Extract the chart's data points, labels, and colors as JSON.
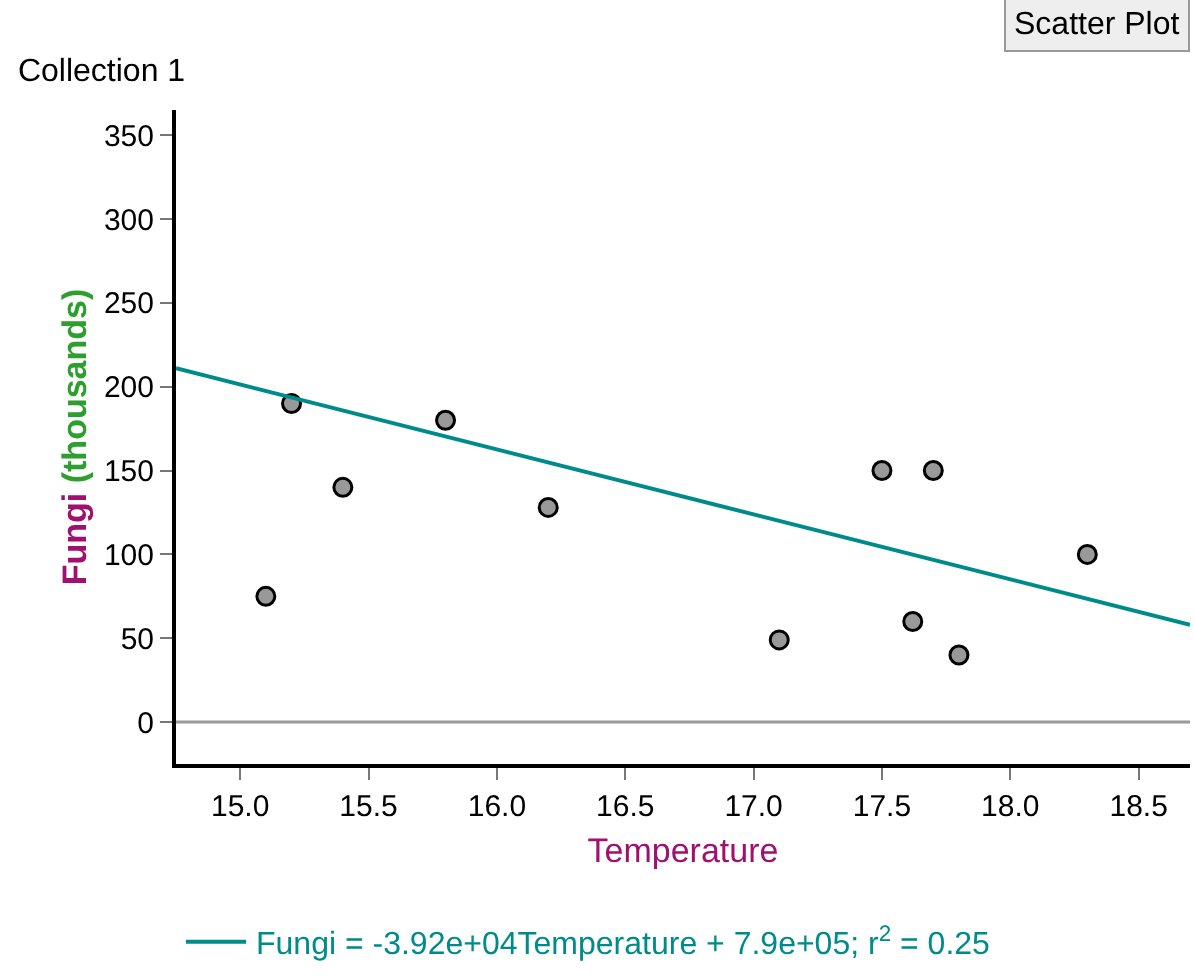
{
  "chart_data": {
    "type": "scatter",
    "title": "Collection 1",
    "xlabel": "Temperature",
    "ylabel": "Fungi (thousands)",
    "annotations": [
      "Scatter Plot"
    ],
    "series": [
      {
        "color": "#999999",
        "marker": "circle",
        "x": [
          15.1,
          15.2,
          15.4,
          15.8,
          16.2,
          17.1,
          17.5,
          17.62,
          17.7,
          17.8,
          18.3
        ],
        "values": [
          75,
          190,
          140,
          180,
          128,
          49,
          150,
          60,
          150,
          40,
          100
        ]
      },
      {
        "type": "line",
        "name": "Fungi = -3.92e+04Temperature + 7.9e+05; r$^{2}$ = 0.25",
        "color": "#008b8b",
        "x": [
          14.75,
          18.7
        ],
        "values": [
          211,
          58
        ]
      }
    ],
    "xlim": [
      14.75,
      18.7
    ],
    "xticks": [
      {
        "value": 15,
        "label": "15.0"
      },
      {
        "value": 15.5,
        "label": "15.5"
      },
      {
        "value": 16,
        "label": "16.0"
      },
      {
        "value": 16.5,
        "label": "16.5"
      },
      {
        "value": 17,
        "label": "17.0"
      },
      {
        "value": 17.5,
        "label": "17.5"
      },
      {
        "value": 18,
        "label": "18.0"
      },
      {
        "value": 18.5,
        "label": "18.5"
      }
    ],
    "ylim": [
      -25,
      365
    ],
    "yticks": [
      0,
      50,
      100,
      150,
      200,
      250,
      300,
      350
    ],
    "ref_lines": [
      {
        "axis": "y",
        "value": 0,
        "color": "#999999"
      }
    ],
    "grid": false,
    "legend": "bottom left"
  }
}
